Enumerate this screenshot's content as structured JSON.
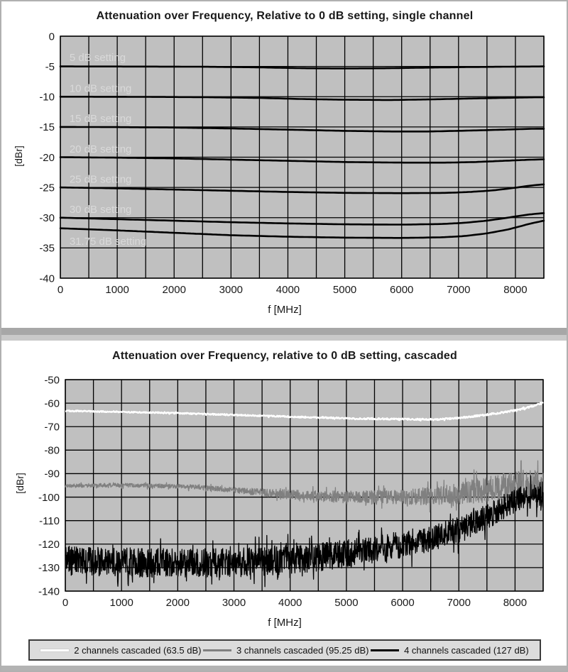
{
  "page": {
    "background": "#ffffff",
    "border_color": "#b0b0b0",
    "separator": {
      "band1_color": "#a7a7a7",
      "band2_color": "#c9c9c9"
    },
    "bottom_band_color": "#b3b3b3"
  },
  "chart_data": [
    {
      "type": "line",
      "title": "Attenuation over Frequency, Relative to 0 dB setting, single channel",
      "xlabel": "f [MHz]",
      "ylabel": "[dBr]",
      "xlim": [
        0,
        8500
      ],
      "ylim": [
        -40,
        0
      ],
      "grid_x_step": 500,
      "x_tick_labels": [
        0,
        1000,
        2000,
        3000,
        4000,
        5000,
        6000,
        7000,
        8000
      ],
      "y_ticks": [
        0,
        -5,
        -10,
        -15,
        -20,
        -25,
        -30,
        -35,
        -40
      ],
      "plot_bg": "#c0c0c0",
      "grid_color": "#000000",
      "annotation_color": "#d9d9d9",
      "legend_position": "none",
      "series": [
        {
          "name": "5 dB setting",
          "color": "#000000",
          "label_xy": [
            160,
            -3.5
          ],
          "points": [
            [
              0,
              -5.0
            ],
            [
              1500,
              -5.02
            ],
            [
              2500,
              -5.05
            ],
            [
              3500,
              -5.15
            ],
            [
              4300,
              -5.3
            ],
            [
              5000,
              -5.33
            ],
            [
              5700,
              -5.3
            ],
            [
              6400,
              -5.2
            ],
            [
              7200,
              -5.1
            ],
            [
              8000,
              -5.03
            ],
            [
              8500,
              -5.0
            ]
          ]
        },
        {
          "name": "10 dB setting",
          "color": "#000000",
          "label_xy": [
            160,
            -8.6
          ],
          "points": [
            [
              0,
              -10.0
            ],
            [
              1500,
              -10.03
            ],
            [
              2500,
              -10.08
            ],
            [
              3500,
              -10.2
            ],
            [
              4300,
              -10.4
            ],
            [
              5000,
              -10.5
            ],
            [
              5800,
              -10.55
            ],
            [
              6500,
              -10.45
            ],
            [
              7200,
              -10.3
            ],
            [
              7800,
              -10.2
            ],
            [
              8300,
              -10.1
            ],
            [
              8500,
              -10.1
            ]
          ]
        },
        {
          "name": "15 dB setting",
          "color": "#000000",
          "label_xy": [
            160,
            -13.6
          ],
          "points": [
            [
              0,
              -15.0
            ],
            [
              1000,
              -15.03
            ],
            [
              2000,
              -15.1
            ],
            [
              3000,
              -15.25
            ],
            [
              4000,
              -15.45
            ],
            [
              5000,
              -15.65
            ],
            [
              5800,
              -15.75
            ],
            [
              6500,
              -15.75
            ],
            [
              7200,
              -15.6
            ],
            [
              7800,
              -15.45
            ],
            [
              8300,
              -15.3
            ],
            [
              8500,
              -15.3
            ]
          ]
        },
        {
          "name": "20 dB setting",
          "color": "#000000",
          "label_xy": [
            160,
            -18.6
          ],
          "points": [
            [
              0,
              -20.0
            ],
            [
              1000,
              -20.08
            ],
            [
              2000,
              -20.2
            ],
            [
              3000,
              -20.4
            ],
            [
              4000,
              -20.6
            ],
            [
              5000,
              -20.8
            ],
            [
              6000,
              -20.9
            ],
            [
              6800,
              -20.9
            ],
            [
              7300,
              -20.8
            ],
            [
              7800,
              -20.6
            ],
            [
              8300,
              -20.4
            ],
            [
              8500,
              -20.35
            ]
          ]
        },
        {
          "name": "25 dB setting",
          "color": "#000000",
          "label_xy": [
            160,
            -23.6
          ],
          "points": [
            [
              0,
              -25.0
            ],
            [
              1000,
              -25.15
            ],
            [
              2000,
              -25.35
            ],
            [
              3000,
              -25.55
            ],
            [
              4000,
              -25.75
            ],
            [
              5000,
              -25.9
            ],
            [
              6000,
              -25.95
            ],
            [
              6800,
              -25.9
            ],
            [
              7200,
              -25.75
            ],
            [
              7600,
              -25.5
            ],
            [
              8000,
              -25.05
            ],
            [
              8300,
              -24.65
            ],
            [
              8500,
              -24.5
            ]
          ]
        },
        {
          "name": "30 dB setting",
          "color": "#000000",
          "label_xy": [
            160,
            -28.6
          ],
          "points": [
            [
              0,
              -30.0
            ],
            [
              1000,
              -30.25
            ],
            [
              2000,
              -30.5
            ],
            [
              3000,
              -30.75
            ],
            [
              4000,
              -30.95
            ],
            [
              5000,
              -31.1
            ],
            [
              6000,
              -31.15
            ],
            [
              6700,
              -31.05
            ],
            [
              7100,
              -30.85
            ],
            [
              7500,
              -30.5
            ],
            [
              7900,
              -29.95
            ],
            [
              8250,
              -29.45
            ],
            [
              8500,
              -29.25
            ]
          ]
        },
        {
          "name": "31.75 dB setting",
          "color": "#000000",
          "label_xy": [
            160,
            -33.9
          ],
          "points": [
            [
              0,
              -31.75
            ],
            [
              1000,
              -32.1
            ],
            [
              2000,
              -32.5
            ],
            [
              3000,
              -32.9
            ],
            [
              4000,
              -33.15
            ],
            [
              5000,
              -33.3
            ],
            [
              6000,
              -33.35
            ],
            [
              6700,
              -33.25
            ],
            [
              7100,
              -33.05
            ],
            [
              7500,
              -32.6
            ],
            [
              7900,
              -31.9
            ],
            [
              8250,
              -31.0
            ],
            [
              8500,
              -30.5
            ]
          ]
        }
      ]
    },
    {
      "type": "line",
      "title": "Attenuation over Frequency, relative to 0 dB setting, cascaded",
      "xlabel": "f [MHz]",
      "ylabel": "[dBr]",
      "xlim": [
        0,
        8500
      ],
      "ylim": [
        -140,
        -50
      ],
      "grid_x_step": 500,
      "x_tick_labels": [
        0,
        1000,
        2000,
        3000,
        4000,
        5000,
        6000,
        7000,
        8000
      ],
      "y_ticks": [
        -50,
        -60,
        -70,
        -80,
        -90,
        -100,
        -110,
        -120,
        -130,
        -140
      ],
      "plot_bg": "#c0c0c0",
      "grid_color": "#000000",
      "legend_position": "bottom",
      "series": [
        {
          "name": "2 channels cascaded (63.5 dB)",
          "color": "#ffffff",
          "noisy": true,
          "center": [
            [
              0,
              -63.3
            ],
            [
              1000,
              -63.7
            ],
            [
              2000,
              -64.3
            ],
            [
              3000,
              -65.0
            ],
            [
              3900,
              -65.7
            ],
            [
              4600,
              -66.2
            ],
            [
              5300,
              -66.6
            ],
            [
              6000,
              -66.8
            ],
            [
              6600,
              -67.0
            ],
            [
              7000,
              -66.3
            ],
            [
              7400,
              -65.2
            ],
            [
              7800,
              -63.9
            ],
            [
              8100,
              -62.6
            ],
            [
              8300,
              -61.4
            ],
            [
              8500,
              -59.9
            ]
          ],
          "noise_amp": [
            [
              0,
              0.25
            ],
            [
              8500,
              0.35
            ]
          ]
        },
        {
          "name": "3 channels cascaded (95.25 dB)",
          "color": "#808080",
          "noisy": true,
          "center": [
            [
              0,
              -95.2
            ],
            [
              800,
              -94.9
            ],
            [
              1500,
              -95.1
            ],
            [
              2200,
              -95.6
            ],
            [
              3000,
              -97.0
            ],
            [
              3600,
              -98.2
            ],
            [
              4200,
              -99.2
            ],
            [
              5000,
              -100.0
            ],
            [
              5800,
              -100.2
            ],
            [
              6400,
              -99.8
            ],
            [
              7000,
              -98.5
            ],
            [
              7500,
              -96.5
            ],
            [
              8000,
              -95.2
            ],
            [
              8500,
              -95.0
            ]
          ],
          "noise_amp": [
            [
              0,
              0.8
            ],
            [
              2000,
              0.9
            ],
            [
              3000,
              1.2
            ],
            [
              4000,
              2.0
            ],
            [
              5000,
              2.6
            ],
            [
              6000,
              3.2
            ],
            [
              6800,
              4.2
            ],
            [
              7400,
              5.5
            ],
            [
              8000,
              6.2
            ],
            [
              8500,
              6.5
            ]
          ]
        },
        {
          "name": "4 channels cascaded (127 dB)",
          "color": "#000000",
          "noisy": true,
          "center": [
            [
              0,
              -127.0
            ],
            [
              800,
              -127.6
            ],
            [
              1600,
              -128.0
            ],
            [
              2400,
              -128.2
            ],
            [
              3000,
              -127.9
            ],
            [
              3600,
              -127.2
            ],
            [
              4200,
              -126.2
            ],
            [
              4800,
              -124.8
            ],
            [
              5400,
              -122.8
            ],
            [
              6000,
              -120.2
            ],
            [
              6500,
              -117.5
            ],
            [
              7000,
              -114.0
            ],
            [
              7300,
              -111.0
            ],
            [
              7600,
              -107.0
            ],
            [
              7900,
              -102.5
            ],
            [
              8200,
              -99.8
            ],
            [
              8500,
              -99.5
            ]
          ],
          "noise_amp": [
            [
              0,
              6.2
            ],
            [
              3000,
              6.2
            ],
            [
              5000,
              6.0
            ],
            [
              6000,
              5.8
            ],
            [
              7000,
              5.5
            ],
            [
              8000,
              5.2
            ],
            [
              8500,
              5.2
            ]
          ]
        }
      ]
    }
  ]
}
